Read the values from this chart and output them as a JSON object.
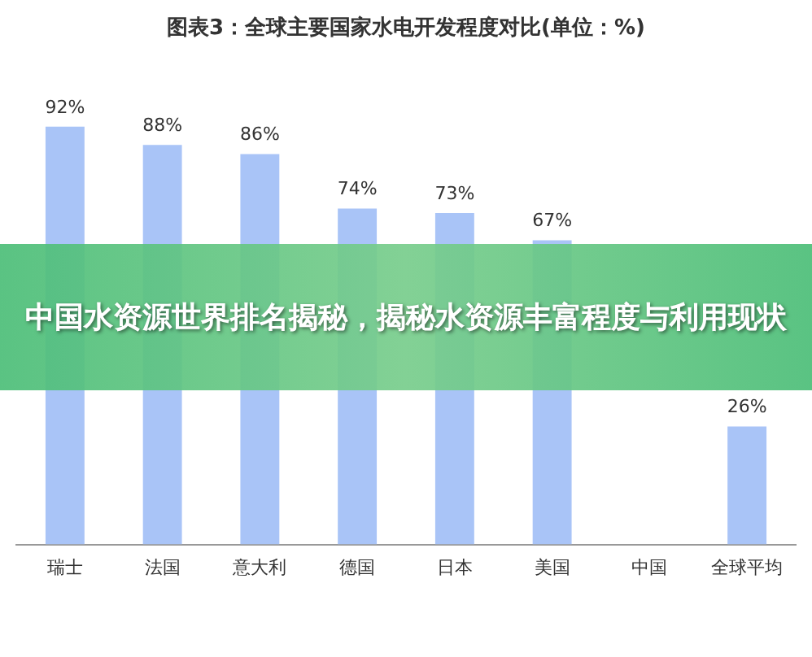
{
  "chart_data": {
    "type": "bar",
    "title": "图表3：全球主要国家水电开发程度对比(单位：%)",
    "categories": [
      "瑞士",
      "法国",
      "意大利",
      "德国",
      "日本",
      "美国",
      "中国",
      "全球平均"
    ],
    "values": [
      92,
      88,
      86,
      74,
      73,
      67,
      null,
      26
    ],
    "value_labels": [
      "92%",
      "88%",
      "86%",
      "74%",
      "73%",
      "67%",
      null,
      "26%"
    ],
    "color": "#a9c4f7",
    "grid": false,
    "legend": false,
    "annotations": [
      "中国水资源世界排名揭秘，揭秘水资源丰富程度与利用现状"
    ]
  }
}
